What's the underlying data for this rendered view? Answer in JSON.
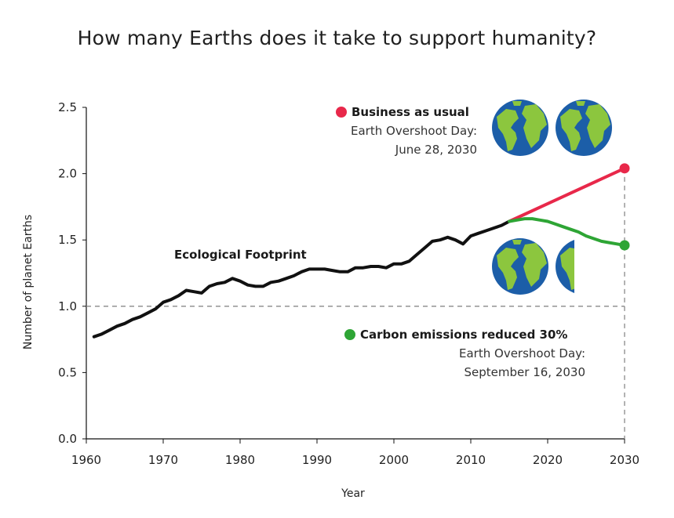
{
  "chart_data": {
    "type": "line",
    "title": "How many Earths does it take to support humanity?",
    "xlabel": "Year",
    "ylabel": "Number of planet Earths",
    "xlim": [
      1960,
      2030
    ],
    "ylim": [
      0,
      2.5
    ],
    "x_ticks": [
      "1960",
      "1970",
      "1980",
      "1990",
      "2000",
      "2010",
      "2020",
      "2030"
    ],
    "y_ticks": [
      "0.0",
      "0.5",
      "1.0",
      "1.5",
      "2.0",
      "2.5"
    ],
    "reference_line": {
      "y": 1.0,
      "style": "dashed"
    },
    "grid": false,
    "series": [
      {
        "name": "Ecological Footprint",
        "color": "#111111",
        "x": [
          1961,
          1962,
          1963,
          1964,
          1965,
          1966,
          1967,
          1968,
          1969,
          1970,
          1971,
          1972,
          1973,
          1974,
          1975,
          1976,
          1977,
          1978,
          1979,
          1980,
          1981,
          1982,
          1983,
          1984,
          1985,
          1986,
          1987,
          1988,
          1989,
          1990,
          1991,
          1992,
          1993,
          1994,
          1995,
          1996,
          1997,
          1998,
          1999,
          2000,
          2001,
          2002,
          2003,
          2004,
          2005,
          2006,
          2007,
          2008,
          2009,
          2010,
          2011,
          2012,
          2013,
          2014,
          2015
        ],
        "values": [
          0.77,
          0.79,
          0.82,
          0.85,
          0.87,
          0.9,
          0.92,
          0.95,
          0.98,
          1.03,
          1.05,
          1.08,
          1.12,
          1.11,
          1.1,
          1.15,
          1.17,
          1.18,
          1.21,
          1.19,
          1.16,
          1.15,
          1.15,
          1.18,
          1.19,
          1.21,
          1.23,
          1.26,
          1.28,
          1.28,
          1.28,
          1.27,
          1.26,
          1.26,
          1.29,
          1.29,
          1.3,
          1.3,
          1.29,
          1.32,
          1.32,
          1.34,
          1.39,
          1.44,
          1.49,
          1.5,
          1.52,
          1.5,
          1.47,
          1.53,
          1.55,
          1.57,
          1.59,
          1.61,
          1.64
        ]
      },
      {
        "name": "Business as usual",
        "color": "#e8284a",
        "x": [
          2015,
          2030
        ],
        "values": [
          1.64,
          2.04
        ]
      },
      {
        "name": "Carbon emissions reduced 30%",
        "color": "#2ea535",
        "x": [
          2015,
          2016,
          2017,
          2018,
          2019,
          2020,
          2021,
          2022,
          2023,
          2024,
          2025,
          2026,
          2027,
          2028,
          2029,
          2030
        ],
        "values": [
          1.64,
          1.65,
          1.66,
          1.66,
          1.65,
          1.64,
          1.62,
          1.6,
          1.58,
          1.56,
          1.53,
          1.51,
          1.49,
          1.48,
          1.47,
          1.46
        ]
      }
    ],
    "annotations": {
      "footprint_label": "Ecological Footprint",
      "bau_title": "Business as usual",
      "bau_line1": "Earth Overshoot Day:",
      "bau_line2": "June 28, 2030",
      "carbon_title": "Carbon emissions reduced 30%",
      "carbon_line1": "Earth Overshoot Day:",
      "carbon_line2": "September 16, 2030"
    },
    "earth_icons": {
      "upper_count": 2,
      "lower_count_shown": 1.75,
      "ocean_color": "#1c5ea8",
      "land_color": "#8cc63e"
    }
  }
}
